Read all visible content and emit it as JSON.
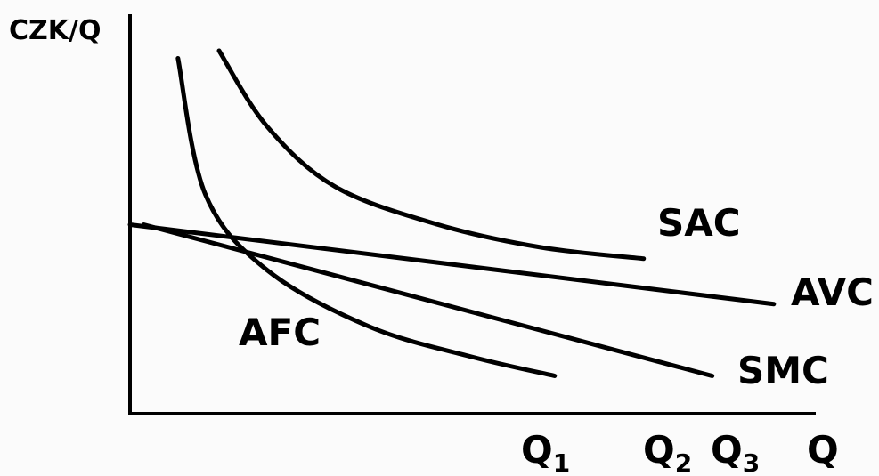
{
  "chart_data": {
    "type": "line",
    "title": "",
    "ylabel": "CZK/Q",
    "xlabel": "Q",
    "x_ticks": [
      {
        "main": "Q",
        "sub": "1"
      },
      {
        "main": "Q",
        "sub": "2"
      },
      {
        "main": "Q",
        "sub": "3"
      }
    ],
    "xlim": [
      0,
      10
    ],
    "ylim": [
      0,
      10
    ],
    "series": [
      {
        "name": "SAC",
        "points": [
          [
            1.3,
            9.6
          ],
          [
            2.0,
            7.6
          ],
          [
            3.0,
            6.0
          ],
          [
            4.5,
            5.0
          ],
          [
            6.0,
            4.4
          ],
          [
            7.5,
            4.1
          ]
        ]
      },
      {
        "name": "AVC",
        "points": [
          [
            0.0,
            5.0
          ],
          [
            9.4,
            2.9
          ]
        ]
      },
      {
        "name": "SMC",
        "points": [
          [
            0.2,
            5.0
          ],
          [
            8.5,
            1.0
          ]
        ]
      },
      {
        "name": "AFC",
        "points": [
          [
            0.7,
            9.4
          ],
          [
            1.1,
            5.8
          ],
          [
            2.0,
            3.8
          ],
          [
            3.5,
            2.3
          ],
          [
            5.0,
            1.5
          ],
          [
            6.2,
            1.0
          ]
        ]
      }
    ],
    "legend": "inline labels at curve ends",
    "grid": false
  }
}
